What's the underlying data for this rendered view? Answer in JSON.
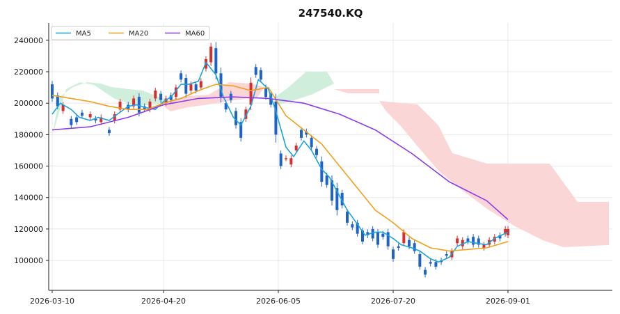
{
  "chart_data": {
    "type": "candlestick",
    "title": "247540.KQ",
    "xlabel": "",
    "ylabel": "",
    "ylim": [
      81000,
      251000
    ],
    "grid": true,
    "legend_position": "top-left",
    "x_ticks": [
      "2026-03-10",
      "2026-04-20",
      "2026-06-05",
      "2026-07-20",
      "2026-09-01"
    ],
    "y_ticks": [
      100000,
      120000,
      140000,
      160000,
      180000,
      200000,
      220000,
      240000
    ],
    "colors": {
      "up": "#d62f2f",
      "down": "#1f63c9",
      "ma5": "#1aa3d9",
      "ma20": "#f0a01a",
      "ma60": "#8a3ce6",
      "cloud_bull": "#cfeedb",
      "cloud_bear": "#fbd6d6",
      "grid": "#e8e8e8",
      "axis": "#222222"
    },
    "series": [
      {
        "name": "MA5",
        "color": "#1aa3d9",
        "points": [
          [
            "2026-03-10",
            193000
          ],
          [
            "2026-03-13",
            200000
          ],
          [
            "2026-03-17",
            196000
          ],
          [
            "2026-03-20",
            191000
          ],
          [
            "2026-03-24",
            189000
          ],
          [
            "2026-03-27",
            191000
          ],
          [
            "2026-03-31",
            189000
          ],
          [
            "2026-04-03",
            193000
          ],
          [
            "2026-04-07",
            198000
          ],
          [
            "2026-04-10",
            199000
          ],
          [
            "2026-04-14",
            197000
          ],
          [
            "2026-04-17",
            196000
          ],
          [
            "2026-04-20",
            201000
          ],
          [
            "2026-04-23",
            204000
          ],
          [
            "2026-04-27",
            212000
          ],
          [
            "2026-04-30",
            212000
          ],
          [
            "2026-05-04",
            214000
          ],
          [
            "2026-05-07",
            226000
          ],
          [
            "2026-05-11",
            218000
          ],
          [
            "2026-05-14",
            204000
          ],
          [
            "2026-05-18",
            191000
          ],
          [
            "2026-05-21",
            186000
          ],
          [
            "2026-05-25",
            198000
          ],
          [
            "2026-05-28",
            215000
          ],
          [
            "2026-06-01",
            209000
          ],
          [
            "2026-06-04",
            195000
          ],
          [
            "2026-06-08",
            172000
          ],
          [
            "2026-06-11",
            166000
          ],
          [
            "2026-06-15",
            176000
          ],
          [
            "2026-06-18",
            170000
          ],
          [
            "2026-06-22",
            158000
          ],
          [
            "2026-06-25",
            153000
          ],
          [
            "2026-06-29",
            141000
          ],
          [
            "2026-07-02",
            132000
          ],
          [
            "2026-07-06",
            123000
          ],
          [
            "2026-07-09",
            116000
          ],
          [
            "2026-07-13",
            118000
          ],
          [
            "2026-07-16",
            118000
          ],
          [
            "2026-07-20",
            114000
          ],
          [
            "2026-07-23",
            110000
          ],
          [
            "2026-07-27",
            108000
          ],
          [
            "2026-07-30",
            106000
          ],
          [
            "2026-08-03",
            101000
          ],
          [
            "2026-08-06",
            99000
          ],
          [
            "2026-08-10",
            102000
          ],
          [
            "2026-08-13",
            109000
          ],
          [
            "2026-08-17",
            112000
          ],
          [
            "2026-08-20",
            111000
          ],
          [
            "2026-08-24",
            110000
          ],
          [
            "2026-08-27",
            114000
          ],
          [
            "2026-09-01",
            118000
          ]
        ]
      },
      {
        "name": "MA20",
        "color": "#f0a01a",
        "points": [
          [
            "2026-03-10",
            205000
          ],
          [
            "2026-03-17",
            203000
          ],
          [
            "2026-03-24",
            201000
          ],
          [
            "2026-03-31",
            198000
          ],
          [
            "2026-04-07",
            196000
          ],
          [
            "2026-04-14",
            196000
          ],
          [
            "2026-04-20",
            200000
          ],
          [
            "2026-04-27",
            203000
          ],
          [
            "2026-05-04",
            208000
          ],
          [
            "2026-05-11",
            212000
          ],
          [
            "2026-05-18",
            211000
          ],
          [
            "2026-05-25",
            208000
          ],
          [
            "2026-06-01",
            210000
          ],
          [
            "2026-06-08",
            192000
          ],
          [
            "2026-06-15",
            183000
          ],
          [
            "2026-06-22",
            174000
          ],
          [
            "2026-06-29",
            160000
          ],
          [
            "2026-07-06",
            146000
          ],
          [
            "2026-07-13",
            132000
          ],
          [
            "2026-07-20",
            124000
          ],
          [
            "2026-07-27",
            114000
          ],
          [
            "2026-08-03",
            108000
          ],
          [
            "2026-08-10",
            106000
          ],
          [
            "2026-08-17",
            107000
          ],
          [
            "2026-08-24",
            108000
          ],
          [
            "2026-09-01",
            112000
          ]
        ]
      },
      {
        "name": "MA60",
        "color": "#8a3ce6",
        "points": [
          [
            "2026-03-10",
            183000
          ],
          [
            "2026-03-24",
            185000
          ],
          [
            "2026-04-07",
            191000
          ],
          [
            "2026-04-20",
            199000
          ],
          [
            "2026-05-04",
            203000
          ],
          [
            "2026-05-18",
            204000
          ],
          [
            "2026-06-01",
            203000
          ],
          [
            "2026-06-15",
            200000
          ],
          [
            "2026-06-29",
            193000
          ],
          [
            "2026-07-13",
            183000
          ],
          [
            "2026-07-27",
            168000
          ],
          [
            "2026-08-10",
            150000
          ],
          [
            "2026-08-24",
            138000
          ],
          [
            "2026-09-01",
            126000
          ]
        ]
      }
    ],
    "candles": [
      [
        "2026-03-10",
        212000,
        203000
      ],
      [
        "2026-03-12",
        205000,
        198000
      ],
      [
        "2026-03-14",
        195000,
        199000
      ],
      [
        "2026-03-17",
        190000,
        186000
      ],
      [
        "2026-03-19",
        191000,
        188000
      ],
      [
        "2026-03-21",
        194000,
        192000
      ],
      [
        "2026-03-24",
        191000,
        193000
      ],
      [
        "2026-03-26",
        190000,
        189000
      ],
      [
        "2026-03-28",
        188000,
        191000
      ],
      [
        "2026-03-31",
        183000,
        181000
      ],
      [
        "2026-04-02",
        189000,
        193000
      ],
      [
        "2026-04-04",
        196000,
        201000
      ],
      [
        "2026-04-07",
        199000,
        196000
      ],
      [
        "2026-04-09",
        198000,
        203000
      ],
      [
        "2026-04-11",
        204000,
        194000
      ],
      [
        "2026-04-13",
        198000,
        196000
      ],
      [
        "2026-04-15",
        196000,
        201000
      ],
      [
        "2026-04-17",
        203000,
        208000
      ],
      [
        "2026-04-19",
        206000,
        202000
      ],
      [
        "2026-04-21",
        200000,
        203000
      ],
      [
        "2026-04-23",
        205000,
        202000
      ],
      [
        "2026-04-25",
        204000,
        210000
      ],
      [
        "2026-04-27",
        219000,
        215000
      ],
      [
        "2026-04-29",
        216000,
        206000
      ],
      [
        "2026-05-01",
        208000,
        212000
      ],
      [
        "2026-05-03",
        212000,
        208000
      ],
      [
        "2026-05-05",
        210000,
        214000
      ],
      [
        "2026-05-07",
        222000,
        228000
      ],
      [
        "2026-05-09",
        226000,
        236000
      ],
      [
        "2026-05-11",
        235000,
        219000
      ],
      [
        "2026-05-13",
        219000,
        204000
      ],
      [
        "2026-05-15",
        200000,
        196000
      ],
      [
        "2026-05-17",
        206000,
        202000
      ],
      [
        "2026-05-19",
        195000,
        186000
      ],
      [
        "2026-05-21",
        188000,
        178000
      ],
      [
        "2026-05-23",
        190000,
        196000
      ],
      [
        "2026-05-25",
        199000,
        213000
      ],
      [
        "2026-05-27",
        223000,
        218000
      ],
      [
        "2026-05-29",
        221000,
        215000
      ],
      [
        "2026-05-31",
        210000,
        204000
      ],
      [
        "2026-06-02",
        206000,
        199000
      ],
      [
        "2026-06-04",
        201000,
        180000
      ],
      [
        "2026-06-06",
        168000,
        160000
      ],
      [
        "2026-06-08",
        165000,
        165000
      ],
      [
        "2026-06-10",
        161000,
        165000
      ],
      [
        "2026-06-12",
        170000,
        173000
      ],
      [
        "2026-06-14",
        183000,
        178000
      ],
      [
        "2026-06-16",
        182000,
        180000
      ],
      [
        "2026-06-18",
        178000,
        172000
      ],
      [
        "2026-06-20",
        171000,
        167000
      ],
      [
        "2026-06-22",
        163000,
        150000
      ],
      [
        "2026-06-24",
        154000,
        148000
      ],
      [
        "2026-06-26",
        151000,
        138000
      ],
      [
        "2026-06-28",
        146000,
        132000
      ],
      [
        "2026-06-30",
        143000,
        135000
      ],
      [
        "2026-07-02",
        131000,
        124000
      ],
      [
        "2026-07-04",
        123000,
        121000
      ],
      [
        "2026-07-06",
        124000,
        117000
      ],
      [
        "2026-07-08",
        119000,
        112000
      ],
      [
        "2026-07-10",
        118000,
        116000
      ],
      [
        "2026-07-12",
        120000,
        114000
      ],
      [
        "2026-07-14",
        118000,
        110000
      ],
      [
        "2026-07-16",
        117000,
        115000
      ],
      [
        "2026-07-18",
        118000,
        109000
      ],
      [
        "2026-07-20",
        107000,
        101000
      ],
      [
        "2026-07-22",
        109000,
        108000
      ],
      [
        "2026-07-24",
        111000,
        118000
      ],
      [
        "2026-07-26",
        113000,
        109000
      ],
      [
        "2026-07-28",
        111000,
        106000
      ],
      [
        "2026-07-30",
        104000,
        96000
      ],
      [
        "2026-08-01",
        94000,
        91000
      ],
      [
        "2026-08-03",
        99000,
        98000
      ],
      [
        "2026-08-05",
        99000,
        96000
      ],
      [
        "2026-08-07",
        100000,
        99000
      ],
      [
        "2026-08-09",
        104000,
        103000
      ],
      [
        "2026-08-11",
        102000,
        106000
      ],
      [
        "2026-08-13",
        111000,
        114000
      ],
      [
        "2026-08-15",
        109000,
        113000
      ],
      [
        "2026-08-17",
        114000,
        112000
      ],
      [
        "2026-08-19",
        115000,
        110000
      ],
      [
        "2026-08-21",
        114000,
        110000
      ],
      [
        "2026-08-23",
        108000,
        110000
      ],
      [
        "2026-08-25",
        110000,
        113000
      ],
      [
        "2026-08-27",
        112000,
        115000
      ],
      [
        "2026-08-29",
        116000,
        114000
      ],
      [
        "2026-08-31",
        117000,
        120000
      ],
      [
        "2026-09-01",
        116000,
        120000
      ]
    ]
  }
}
